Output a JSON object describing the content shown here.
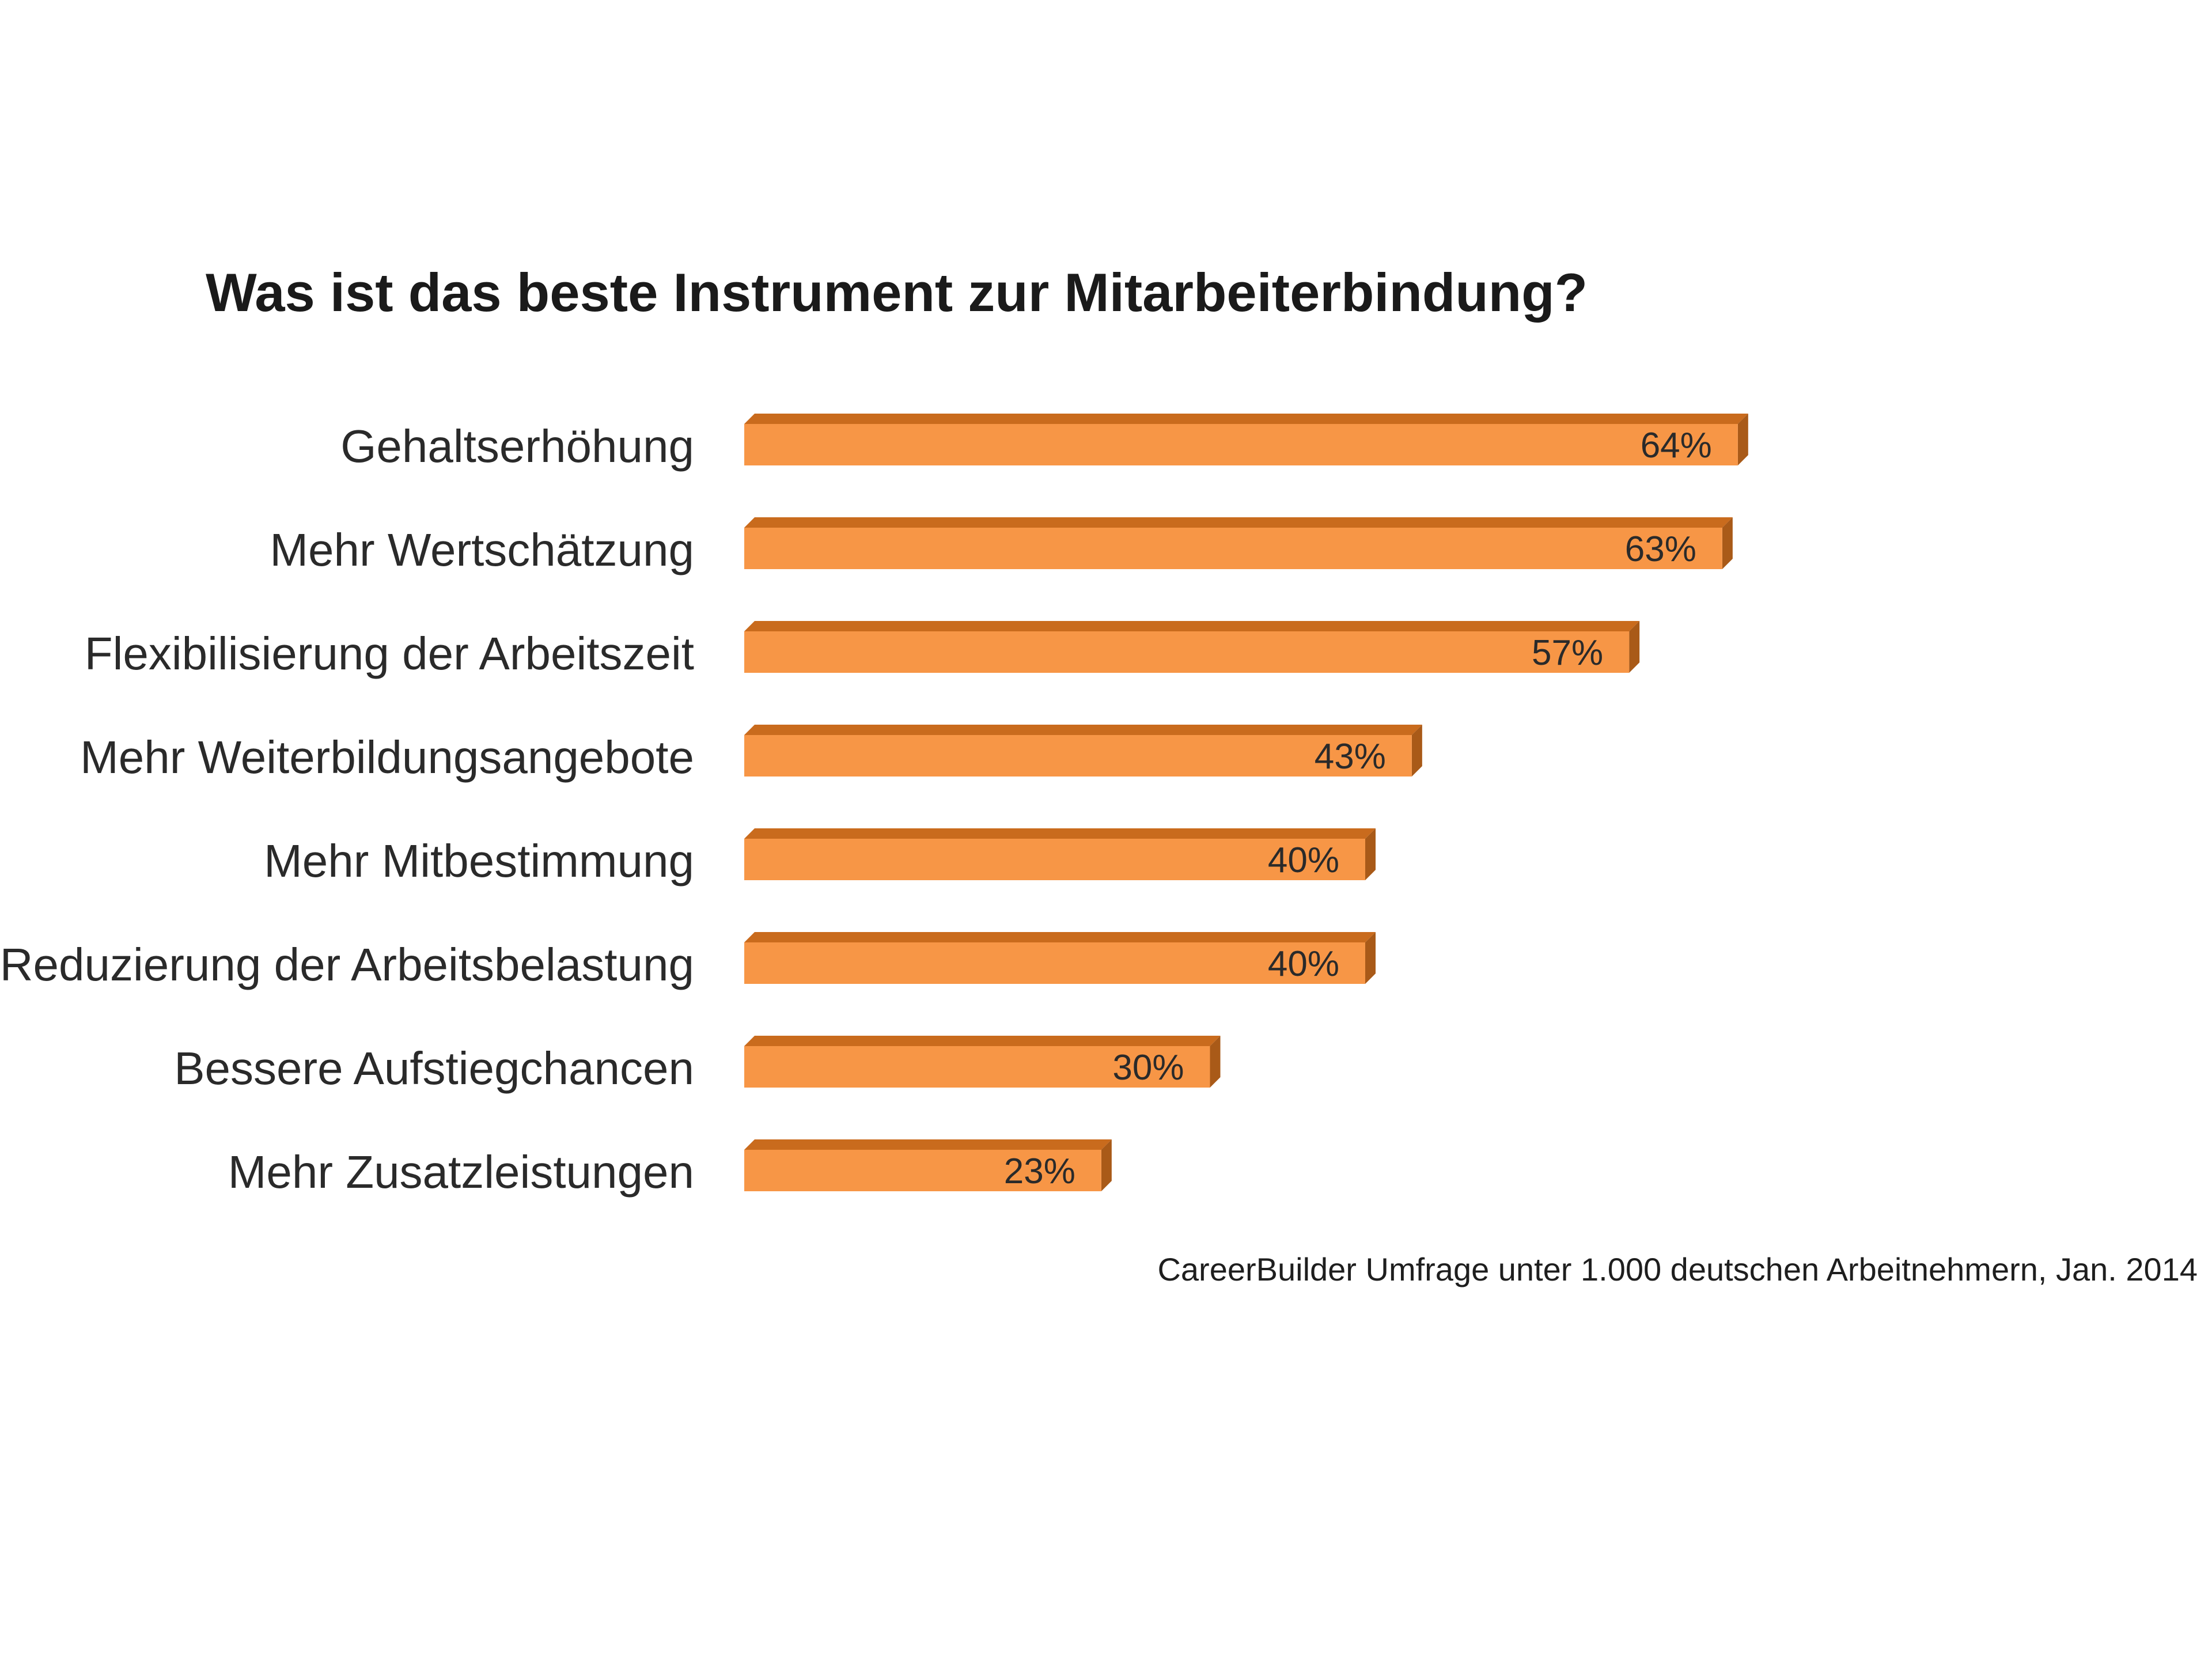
{
  "chart_data": {
    "type": "bar",
    "orientation": "horizontal",
    "title": "Was ist das beste Instrument zur  Mitarbeiterbindung?",
    "categories": [
      "Gehaltserhöhung",
      "Mehr Wertschätzung",
      "Flexibilisierung der Arbeitszeit",
      "Mehr Weiterbildungsangebote",
      "Mehr Mitbestimmung",
      "Reduzierung der Arbeitsbelastung",
      "Bessere  Aufstiegchancen",
      "Mehr Zusatzleistungen"
    ],
    "values": [
      64,
      63,
      57,
      43,
      40,
      40,
      30,
      23
    ],
    "value_labels": [
      "64%",
      "63%",
      "57%",
      "43%",
      "40%",
      "40%",
      "30%",
      "23%"
    ],
    "unit": "%",
    "xlabel": "",
    "ylabel": "",
    "xlim": [
      0,
      100
    ],
    "grid": false,
    "legend": "none",
    "style": "3d"
  },
  "source": "CareerBuilder Umfrage unter 1.000 deutschen Arbeitnehmern, Jan. 2014",
  "colors": {
    "bar_front": "#f79646",
    "bar_top": "#c96b1d",
    "bar_side": "#a95a18"
  }
}
